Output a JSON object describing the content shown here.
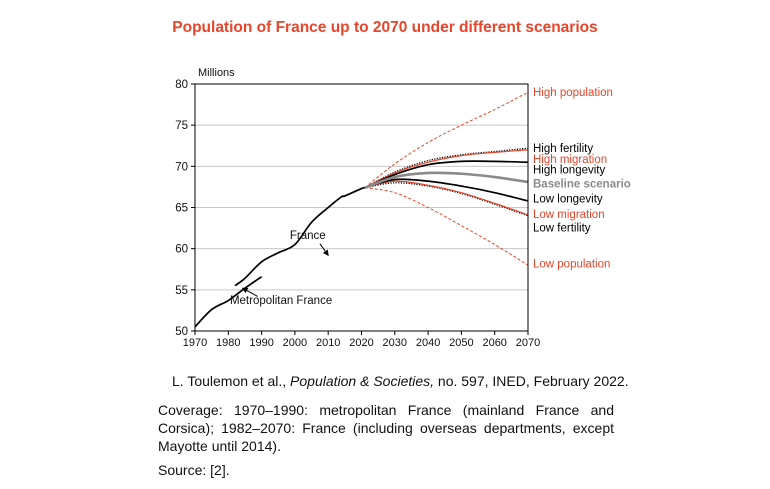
{
  "title": "Population of France up to 2070 under different scenarios",
  "caption": {
    "citation_authors": "L. Toulemon et al., ",
    "citation_journal": "Population & Societies,",
    "citation_rest": " no. 597, INED, February 2022.",
    "coverage": "Coverage: 1970–1990: metropolitan France (mainland France and Corsica); 1982–2070: France (including overseas departments, except Mayotte until 2014).",
    "source": "Source: [2]."
  },
  "chart_data": {
    "type": "line",
    "title": "Population of France up to 2070 under different scenarios",
    "ylabel": "Millions",
    "xlabel": "",
    "xlim": [
      1970,
      2070
    ],
    "ylim": [
      50,
      80
    ],
    "xticks": [
      1970,
      1980,
      1990,
      2000,
      2010,
      2020,
      2030,
      2040,
      2050,
      2060,
      2070
    ],
    "yticks": [
      50,
      55,
      60,
      65,
      70,
      75,
      80
    ],
    "grid": "horizontal",
    "annotations": [
      {
        "text": "France",
        "x": 2008,
        "y": 61.2
      },
      {
        "text": "Metropolitan France",
        "x": 1990,
        "y": 53.5
      }
    ],
    "series": [
      {
        "name": "Metropolitan France",
        "color": "#000000",
        "style": "solid",
        "x": [
          1970,
          1975,
          1980,
          1985,
          1990
        ],
        "y": [
          50.5,
          52.6,
          53.7,
          55.2,
          56.6
        ]
      },
      {
        "name": "France",
        "color": "#000000",
        "style": "solid",
        "x": [
          1982,
          1985,
          1990,
          1995,
          2000,
          2005,
          2010,
          2014,
          2015,
          2020,
          2021
        ],
        "y": [
          55.5,
          56.4,
          58.4,
          59.5,
          60.5,
          63.2,
          65.0,
          66.3,
          66.4,
          67.3,
          67.4
        ]
      },
      {
        "name": "High population",
        "color": "#e8452a",
        "style": "dashed",
        "x": [
          2021,
          2030,
          2040,
          2050,
          2060,
          2070
        ],
        "y": [
          67.4,
          70.3,
          72.9,
          75.0,
          76.9,
          79.0
        ]
      },
      {
        "name": "High fertility",
        "color": "#000000",
        "style": "dotted",
        "x": [
          2021,
          2030,
          2040,
          2050,
          2060,
          2070
        ],
        "y": [
          67.4,
          69.3,
          70.7,
          71.4,
          71.8,
          72.2
        ]
      },
      {
        "name": "High migration",
        "color": "#e8452a",
        "style": "solid",
        "x": [
          2021,
          2030,
          2040,
          2050,
          2060,
          2070
        ],
        "y": [
          67.4,
          69.2,
          70.5,
          71.3,
          71.7,
          72.0
        ]
      },
      {
        "name": "High longevity",
        "color": "#000000",
        "style": "solid",
        "x": [
          2021,
          2030,
          2040,
          2050,
          2060,
          2070
        ],
        "y": [
          67.4,
          69.0,
          70.2,
          70.6,
          70.6,
          70.5
        ]
      },
      {
        "name": "Baseline scenario",
        "color": "#8a8a8a",
        "style": "solid",
        "x": [
          2021,
          2030,
          2040,
          2050,
          2060,
          2070
        ],
        "y": [
          67.4,
          68.7,
          69.2,
          69.1,
          68.7,
          68.1
        ]
      },
      {
        "name": "Low longevity",
        "color": "#000000",
        "style": "solid",
        "x": [
          2021,
          2030,
          2040,
          2050,
          2060,
          2070
        ],
        "y": [
          67.4,
          68.4,
          68.2,
          67.6,
          66.8,
          65.8
        ]
      },
      {
        "name": "Low migration",
        "color": "#e8452a",
        "style": "solid",
        "x": [
          2021,
          2030,
          2040,
          2050,
          2060,
          2070
        ],
        "y": [
          67.4,
          68.2,
          67.7,
          66.8,
          65.5,
          64.1
        ]
      },
      {
        "name": "Low fertility",
        "color": "#000000",
        "style": "dotted",
        "x": [
          2021,
          2030,
          2040,
          2050,
          2060,
          2070
        ],
        "y": [
          67.4,
          68.0,
          67.6,
          66.7,
          65.4,
          64.0
        ]
      },
      {
        "name": "Low population",
        "color": "#e8452a",
        "style": "dashed",
        "x": [
          2021,
          2030,
          2040,
          2050,
          2060,
          2070
        ],
        "y": [
          67.4,
          66.8,
          65.0,
          62.8,
          60.5,
          58.0
        ]
      }
    ],
    "scenario_labels": [
      {
        "text": "High population",
        "color": "#e8452a",
        "y": 79.0
      },
      {
        "text": "High fertility",
        "color": "#000000",
        "y": 72.2
      },
      {
        "text": "High migration",
        "color": "#e8452a",
        "y": 70.9
      },
      {
        "text": "High longevity",
        "color": "#000000",
        "y": 69.6
      },
      {
        "text": "Baseline scenario",
        "color": "#8a8a8a",
        "y": 67.9
      },
      {
        "text": "Low longevity",
        "color": "#000000",
        "y": 66.1
      },
      {
        "text": "Low migration",
        "color": "#e8452a",
        "y": 64.2
      },
      {
        "text": "Low fertility",
        "color": "#000000",
        "y": 62.6
      },
      {
        "text": "Low population",
        "color": "#e8452a",
        "y": 58.2
      }
    ]
  }
}
